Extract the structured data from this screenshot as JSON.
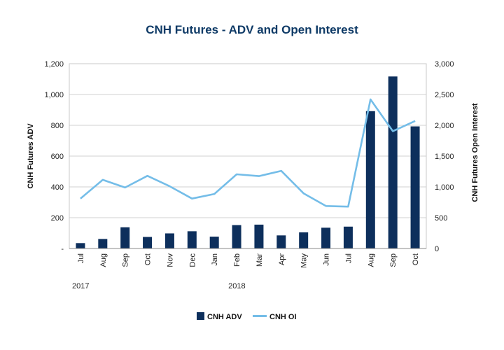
{
  "chart_data": {
    "type": "bar",
    "title": "CNH Futures  - ADV and Open Interest",
    "categories": [
      "Jul",
      "Aug",
      "Sep",
      "Oct",
      "Nov",
      "Dec",
      "Jan",
      "Feb",
      "Mar",
      "Apr",
      "May",
      "Jun",
      "Jul",
      "Aug",
      "Sep",
      "Oct"
    ],
    "years": [
      {
        "label": "2017",
        "start_index": 0
      },
      {
        "label": "2018",
        "start_index": 6
      }
    ],
    "series": [
      {
        "name": "CNH ADV",
        "type": "bar",
        "axis": "left",
        "color": "#0d2f5c",
        "values": [
          35,
          62,
          138,
          75,
          98,
          112,
          77,
          152,
          155,
          85,
          105,
          135,
          142,
          892,
          1117,
          793
        ]
      },
      {
        "name": "CNH OI",
        "type": "line",
        "axis": "right",
        "color": "#74bde8",
        "values": [
          810,
          1115,
          990,
          1180,
          1010,
          810,
          885,
          1205,
          1175,
          1260,
          895,
          690,
          680,
          2420,
          1905,
          2070
        ]
      }
    ],
    "ylabel": "CNH Futures ADV",
    "y2label": "CNH Futures Open Interest",
    "ylim": [
      0,
      1200
    ],
    "y2lim": [
      0,
      3000
    ],
    "yticks": [
      0,
      200,
      400,
      600,
      800,
      1000,
      1200
    ],
    "ytick_labels": [
      "-",
      "200",
      "400",
      "600",
      "800",
      "1,000",
      "1,200"
    ],
    "y2ticks": [
      0,
      500,
      1000,
      1500,
      2000,
      2500,
      3000
    ],
    "y2tick_labels": [
      "0",
      "500",
      "1,000",
      "1,500",
      "2,000",
      "2,500",
      "3,000"
    ],
    "grid": true,
    "legend": [
      {
        "label": "CNH ADV",
        "style": "bar"
      },
      {
        "label": "CNH OI",
        "style": "line"
      }
    ],
    "legend_position": "bottom-center"
  }
}
